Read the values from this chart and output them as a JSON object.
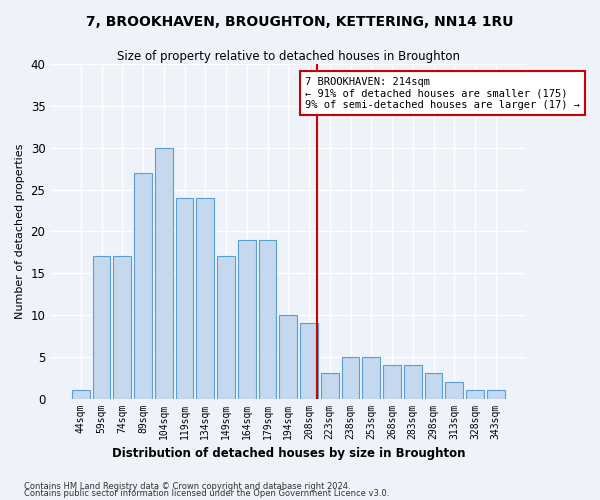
{
  "title": "7, BROOKHAVEN, BROUGHTON, KETTERING, NN14 1RU",
  "subtitle": "Size of property relative to detached houses in Broughton",
  "xlabel": "Distribution of detached houses by size in Broughton",
  "ylabel": "Number of detached properties",
  "categories": [
    "44sqm",
    "59sqm",
    "74sqm",
    "89sqm",
    "104sqm",
    "119sqm",
    "134sqm",
    "149sqm",
    "164sqm",
    "179sqm",
    "194sqm",
    "208sqm",
    "223sqm",
    "238sqm",
    "253sqm",
    "268sqm",
    "283sqm",
    "298sqm",
    "313sqm",
    "328sqm",
    "343sqm"
  ],
  "values": [
    1,
    17,
    17,
    27,
    30,
    24,
    24,
    17,
    19,
    19,
    10,
    9,
    3,
    5,
    5,
    4,
    4,
    3,
    2,
    1,
    1
  ],
  "bar_color": "#c5d8ed",
  "bar_edge_color": "#5a9fd4",
  "background_color": "#eef2f9",
  "grid_color": "#ffffff",
  "annotation_text": "7 BROOKHAVEN: 214sqm\n← 91% of detached houses are smaller (175)\n9% of semi-detached houses are larger (17) →",
  "annotation_box_color": "#ffffff",
  "annotation_border_color": "#cc0000",
  "ylim": [
    0,
    40
  ],
  "yticks": [
    0,
    5,
    10,
    15,
    20,
    25,
    30,
    35,
    40
  ],
  "footnote1": "Contains HM Land Registry data © Crown copyright and database right 2024.",
  "footnote2": "Contains public sector information licensed under the Open Government Licence v3.0."
}
